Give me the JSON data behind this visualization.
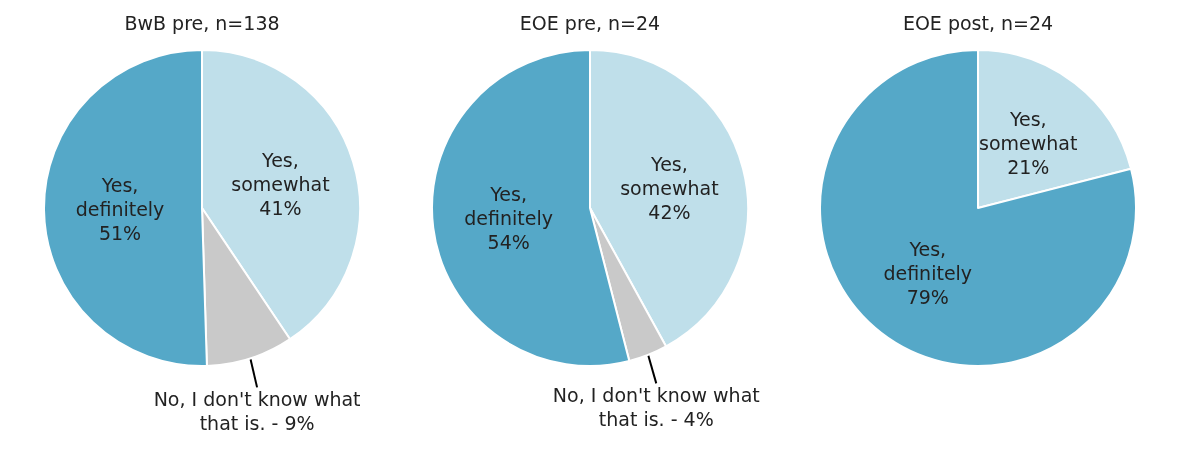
{
  "chart_data": [
    {
      "type": "pie",
      "title": "BwB pre, n=138",
      "categories": [
        "Yes, somewhat",
        "No, I don't know what that is.",
        "Yes, definitely"
      ],
      "values": [
        41,
        9,
        51
      ],
      "value_labels": [
        "41%",
        "9%",
        "51%"
      ],
      "colors": [
        "#bfdfea",
        "#c9c9c9",
        "#55a8c8"
      ],
      "legend": false
    },
    {
      "type": "pie",
      "title": "EOE pre, n=24",
      "categories": [
        "Yes, somewhat",
        "No, I don't know what that is.",
        "Yes, definitely"
      ],
      "values": [
        42,
        4,
        54
      ],
      "value_labels": [
        "42%",
        "4%",
        "54%"
      ],
      "colors": [
        "#bfdfea",
        "#c9c9c9",
        "#55a8c8"
      ],
      "legend": false
    },
    {
      "type": "pie",
      "title": "EOE post, n=24",
      "categories": [
        "Yes, somewhat",
        "Yes, definitely"
      ],
      "values": [
        21,
        79
      ],
      "value_labels": [
        "21%",
        "79%"
      ],
      "colors": [
        "#bfdfea",
        "#55a8c8"
      ],
      "legend": false
    }
  ]
}
